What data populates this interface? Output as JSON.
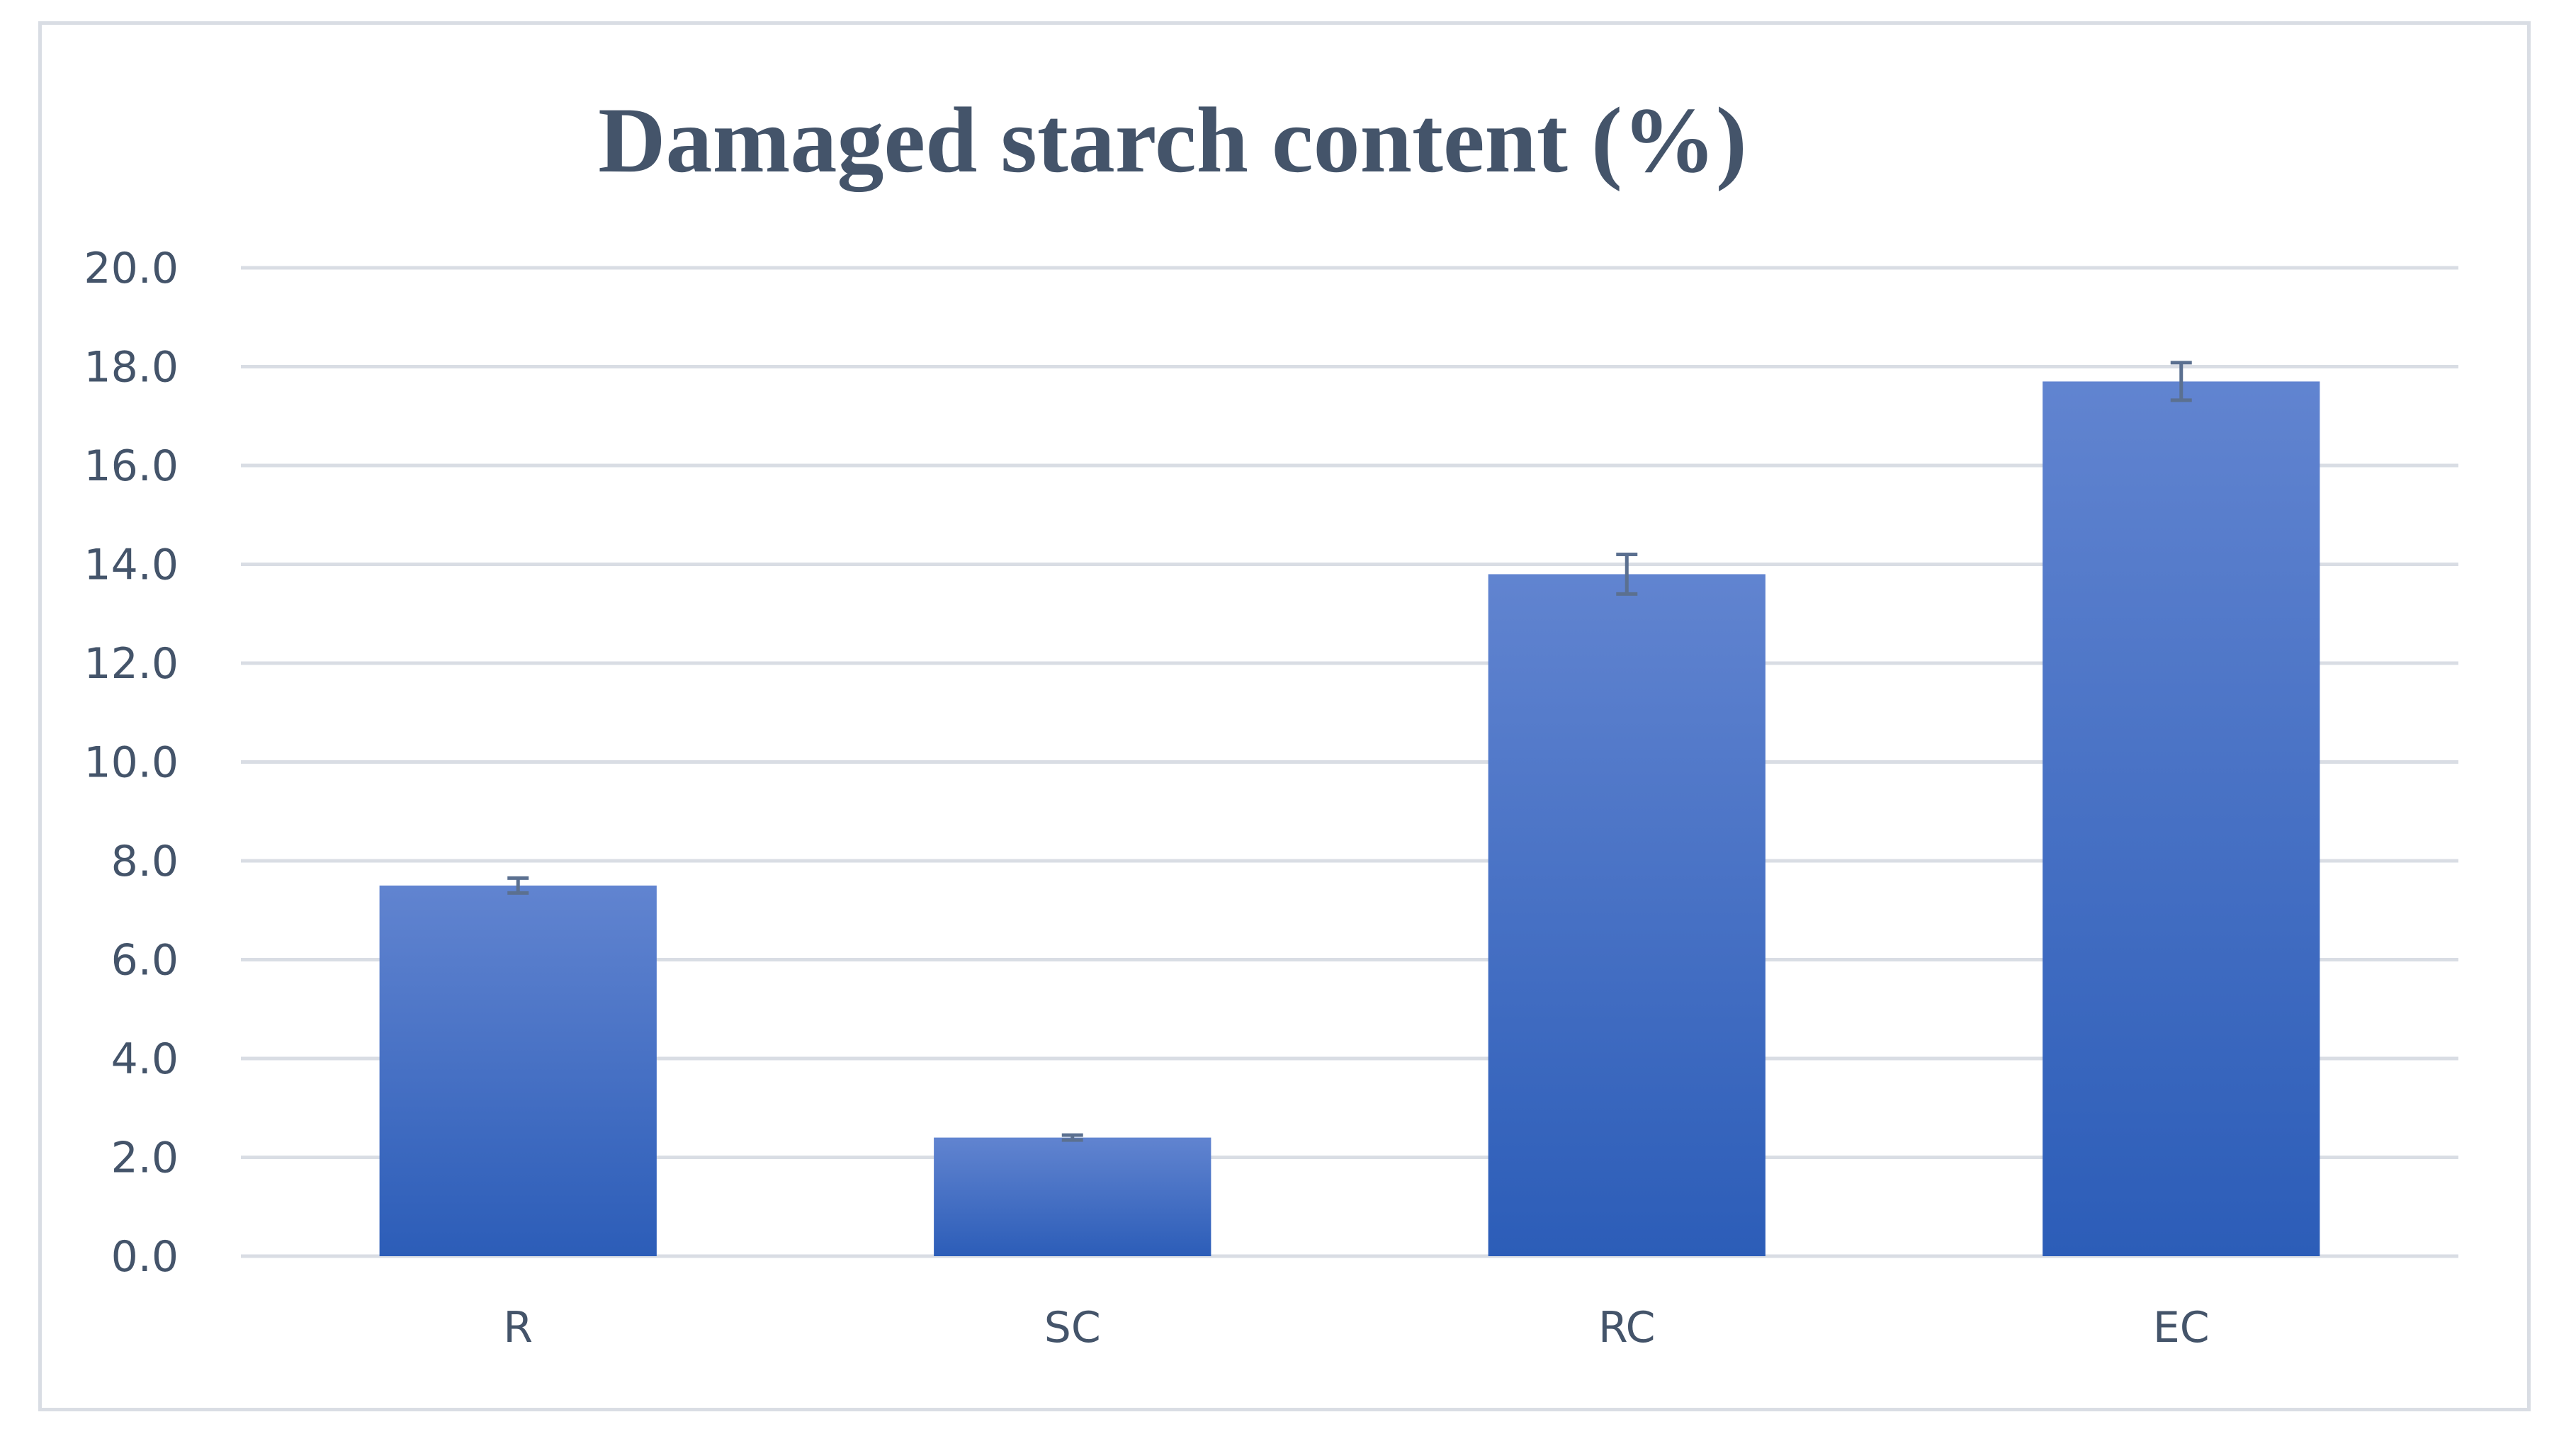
{
  "chart_data": {
    "type": "bar",
    "title": "Damaged starch content (%)",
    "xlabel": "",
    "ylabel": "",
    "categories": [
      "R",
      "SC",
      "RC",
      "EC"
    ],
    "values": [
      7.5,
      2.4,
      13.8,
      17.7
    ],
    "error": [
      0.15,
      0.05,
      0.4,
      0.38
    ],
    "ylim": [
      0,
      20
    ],
    "yticks": [
      "0.0",
      "2.0",
      "4.0",
      "6.0",
      "8.0",
      "10.0",
      "12.0",
      "14.0",
      "16.0",
      "18.0",
      "20.0"
    ],
    "grid": true,
    "legend": "none",
    "colors": {
      "bar_top": "#6184d0",
      "bar_bottom": "#2c5db8",
      "grid": "#d9dde4",
      "error_bar": "#5b7090",
      "text": "#44546a"
    }
  }
}
